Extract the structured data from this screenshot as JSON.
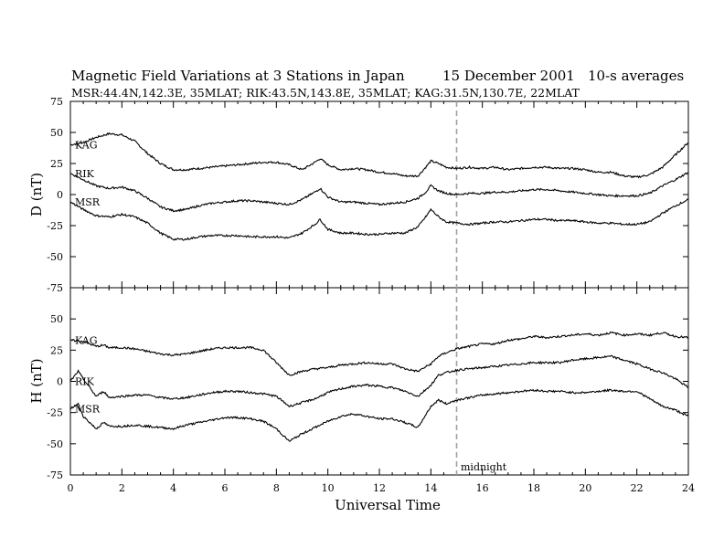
{
  "header": {
    "title": "Magnetic Field Variations at 3 Stations in Japan",
    "date": "15 December 2001",
    "averaging": "10-s averages",
    "subtitle": "MSR:44.4N,142.3E, 35MLAT;   RIK:43.5N,143.8E, 35MLAT;   KAG:31.5N,130.7E, 22MLAT"
  },
  "colors": {
    "trace": "#000000",
    "midnight_line": "#a0a0a0",
    "frame": "#000000"
  },
  "chart_data": [
    {
      "type": "line",
      "panel": "D",
      "ylabel": "D (nT)",
      "xlabel": "",
      "xlim": [
        0,
        24
      ],
      "ylim": [
        -75,
        75
      ],
      "yticks": [
        -75,
        -50,
        -25,
        0,
        25,
        50,
        75
      ],
      "xticks": [
        0,
        2,
        4,
        6,
        8,
        10,
        12,
        14,
        16,
        18,
        20,
        22,
        24
      ],
      "grid": false,
      "series": [
        {
          "name": "KAG",
          "x": [
            0,
            0.5,
            1,
            1.5,
            2,
            2.5,
            3,
            3.5,
            4,
            4.5,
            5,
            5.5,
            6,
            6.5,
            7,
            7.5,
            8,
            8.5,
            9,
            9.5,
            9.7,
            10,
            10.5,
            11,
            11.5,
            12,
            12.5,
            13,
            13.5,
            13.8,
            14,
            14.3,
            14.6,
            15,
            15.5,
            16,
            16.5,
            17,
            17.5,
            18,
            18.5,
            19,
            19.5,
            20,
            20.5,
            21,
            21.5,
            22,
            22.5,
            23,
            23.5,
            24
          ],
          "y": [
            40,
            42,
            46,
            49,
            48,
            43,
            33,
            25,
            20,
            20,
            21,
            22,
            23,
            24,
            25,
            26,
            26,
            24,
            20,
            26,
            29,
            24,
            20,
            21,
            20,
            18,
            17,
            15,
            15,
            22,
            27,
            25,
            22,
            21,
            22,
            21,
            22,
            20,
            21,
            22,
            22,
            21,
            21,
            20,
            18,
            18,
            15,
            14,
            16,
            22,
            32,
            42
          ]
        },
        {
          "name": "RIK",
          "x": [
            0,
            0.5,
            1,
            1.5,
            2,
            2.5,
            3,
            3.5,
            4,
            4.5,
            5,
            5.5,
            6,
            6.5,
            7,
            7.5,
            8,
            8.5,
            9,
            9.5,
            9.7,
            10,
            10.5,
            11,
            11.5,
            12,
            12.5,
            13,
            13.5,
            13.8,
            14,
            14.3,
            14.6,
            15,
            15.5,
            16,
            16.5,
            17,
            17.5,
            18,
            18.5,
            19,
            19.5,
            20,
            20.5,
            21,
            21.5,
            22,
            22.5,
            23,
            23.5,
            24
          ],
          "y": [
            17,
            12,
            7,
            5,
            6,
            3,
            -3,
            -10,
            -13,
            -12,
            -9,
            -7,
            -6,
            -5,
            -5,
            -6,
            -7,
            -8,
            -4,
            2,
            5,
            -2,
            -6,
            -6,
            -7,
            -8,
            -7,
            -6,
            -3,
            2,
            7,
            3,
            1,
            0,
            1,
            1,
            2,
            2,
            3,
            4,
            4,
            3,
            2,
            1,
            0,
            -1,
            -1,
            -1,
            1,
            7,
            12,
            18
          ]
        },
        {
          "name": "MSR",
          "x": [
            0,
            0.5,
            1,
            1.5,
            2,
            2.5,
            3,
            3.5,
            4,
            4.5,
            5,
            5.5,
            6,
            6.5,
            7,
            7.5,
            8,
            8.5,
            9,
            9.5,
            9.7,
            10,
            10.5,
            11,
            11.5,
            12,
            12.5,
            13,
            13.5,
            13.8,
            14,
            14.3,
            14.6,
            15,
            15.5,
            16,
            16.5,
            17,
            17.5,
            18,
            18.5,
            19,
            19.5,
            20,
            20.5,
            21,
            21.5,
            22,
            22.5,
            23,
            23.5,
            24
          ],
          "y": [
            -6,
            -12,
            -17,
            -18,
            -16,
            -18,
            -23,
            -31,
            -36,
            -36,
            -34,
            -33,
            -33,
            -33,
            -34,
            -34,
            -34,
            -35,
            -31,
            -24,
            -20,
            -28,
            -31,
            -31,
            -32,
            -32,
            -31,
            -31,
            -26,
            -18,
            -12,
            -18,
            -22,
            -23,
            -24,
            -23,
            -22,
            -22,
            -21,
            -20,
            -20,
            -21,
            -21,
            -22,
            -23,
            -23,
            -24,
            -24,
            -22,
            -15,
            -9,
            -4
          ]
        }
      ]
    },
    {
      "type": "line",
      "panel": "H",
      "ylabel": "H (nT)",
      "xlabel": "Universal Time",
      "xlim": [
        0,
        24
      ],
      "ylim": [
        -75,
        75
      ],
      "yticks": [
        -75,
        -50,
        -25,
        0,
        25,
        50,
        75
      ],
      "xticks": [
        0,
        2,
        4,
        6,
        8,
        10,
        12,
        14,
        16,
        18,
        20,
        22,
        24
      ],
      "grid": false,
      "annotations": [
        {
          "text": "midnight",
          "x": 15
        }
      ],
      "series": [
        {
          "name": "KAG",
          "x": [
            0,
            0.5,
            1,
            1.3,
            1.5,
            2,
            2.5,
            3,
            3.5,
            4,
            4.5,
            5,
            5.5,
            6,
            6.5,
            7,
            7.5,
            8,
            8.5,
            9,
            9.5,
            10,
            10.5,
            11,
            11.5,
            12,
            12.5,
            13,
            13.5,
            14,
            14.3,
            14.6,
            15,
            15.5,
            16,
            16.5,
            17,
            17.5,
            18,
            18.5,
            19,
            19.5,
            20,
            20.5,
            21,
            21.5,
            22,
            22.5,
            23,
            23.5,
            24
          ],
          "y": [
            33,
            32,
            28,
            29,
            27,
            27,
            26,
            24,
            22,
            21,
            22,
            24,
            26,
            27,
            27,
            27,
            25,
            15,
            5,
            8,
            10,
            11,
            13,
            14,
            15,
            14,
            14,
            10,
            8,
            14,
            20,
            23,
            26,
            28,
            30,
            30,
            33,
            34,
            36,
            35,
            36,
            37,
            38,
            37,
            39,
            37,
            38,
            37,
            39,
            36,
            35
          ]
        },
        {
          "name": "RIK",
          "x": [
            0,
            0.3,
            0.5,
            1,
            1.3,
            1.5,
            2,
            2.5,
            3,
            3.5,
            4,
            4.5,
            5,
            5.5,
            6,
            6.5,
            7,
            7.5,
            8,
            8.5,
            9,
            9.5,
            10,
            10.5,
            11,
            11.5,
            12,
            12.5,
            13,
            13.5,
            14,
            14.3,
            14.6,
            15,
            15.5,
            16,
            16.5,
            17,
            17.5,
            18,
            18.5,
            19,
            19.5,
            20,
            20.5,
            21,
            21.5,
            22,
            22.5,
            23,
            23.5,
            24
          ],
          "y": [
            0,
            8,
            2,
            -12,
            -8,
            -13,
            -12,
            -11,
            -11,
            -13,
            -14,
            -13,
            -11,
            -9,
            -8,
            -8,
            -9,
            -10,
            -12,
            -20,
            -17,
            -14,
            -9,
            -6,
            -4,
            -3,
            -4,
            -5,
            -8,
            -12,
            -3,
            5,
            7,
            9,
            10,
            11,
            12,
            13,
            14,
            15,
            15,
            15,
            17,
            18,
            19,
            20,
            17,
            14,
            10,
            7,
            2,
            -5
          ]
        },
        {
          "name": "MSR",
          "x": [
            0,
            0.3,
            0.5,
            1,
            1.3,
            1.5,
            2,
            2.5,
            3,
            3.5,
            4,
            4.5,
            5,
            5.5,
            6,
            6.5,
            7,
            7.5,
            8,
            8.5,
            9,
            9.5,
            10,
            10.5,
            11,
            11.5,
            12,
            12.5,
            13,
            13.5,
            14,
            14.3,
            14.6,
            15,
            15.5,
            16,
            16.5,
            17,
            17.5,
            18,
            18.5,
            19,
            19.5,
            20,
            20.5,
            21,
            21.5,
            22,
            22.5,
            23,
            23.5,
            24
          ],
          "y": [
            -22,
            -18,
            -28,
            -38,
            -33,
            -36,
            -36,
            -35,
            -36,
            -37,
            -38,
            -35,
            -33,
            -31,
            -29,
            -29,
            -30,
            -32,
            -38,
            -48,
            -42,
            -37,
            -32,
            -28,
            -26,
            -28,
            -30,
            -30,
            -33,
            -37,
            -20,
            -15,
            -18,
            -15,
            -13,
            -11,
            -10,
            -9,
            -8,
            -7,
            -8,
            -8,
            -9,
            -9,
            -8,
            -7,
            -8,
            -8,
            -14,
            -20,
            -23,
            -28
          ]
        }
      ]
    }
  ]
}
